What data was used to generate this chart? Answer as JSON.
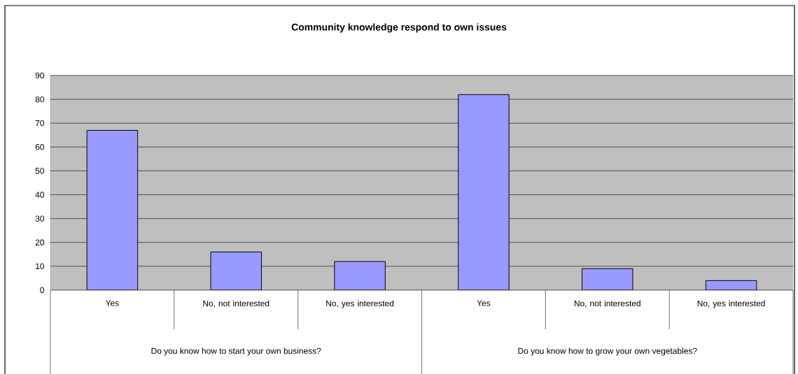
{
  "chart_data": {
    "type": "bar",
    "title": "Community knowledge respond to own issues",
    "categories": [
      "Yes",
      "No, not interested",
      "No, yes interested",
      "Yes",
      "No, not interested",
      "No, yes interested"
    ],
    "values": [
      67,
      16,
      12,
      82,
      9,
      4
    ],
    "color": "#9999ff",
    "ylim": [
      0,
      90
    ],
    "yticks": [
      0,
      10,
      20,
      30,
      40,
      50,
      60,
      70,
      80,
      90
    ],
    "grid": "y",
    "annotations": [
      "Do you know how to start your own business?",
      "Do you know how to grow your own vegetables?"
    ]
  }
}
